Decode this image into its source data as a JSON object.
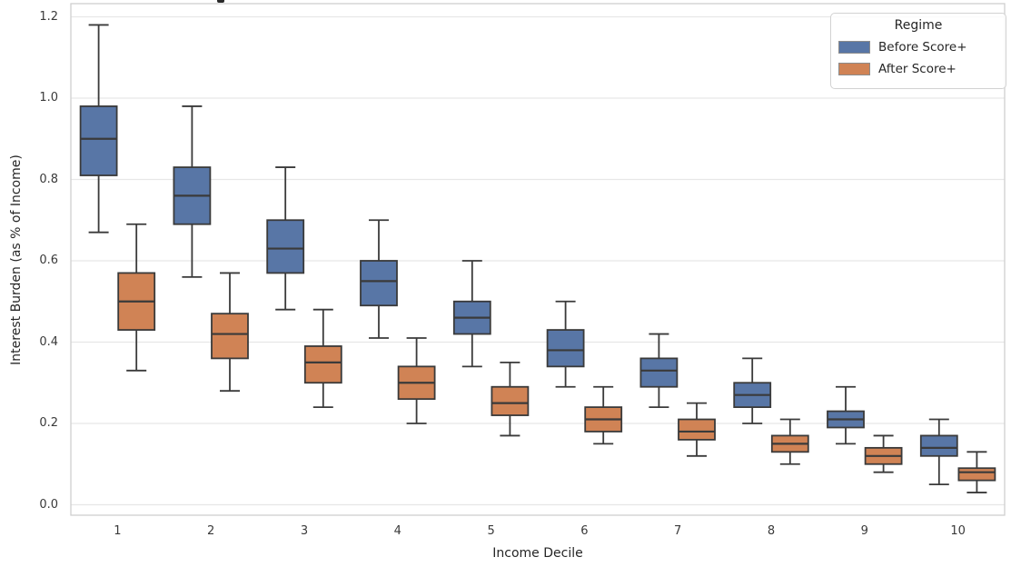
{
  "chart_data": {
    "type": "boxplot",
    "title": "",
    "xlabel": "Income Decile",
    "ylabel": "Interest Burden (as % of Income)",
    "categories": [
      "1",
      "2",
      "3",
      "4",
      "5",
      "6",
      "7",
      "8",
      "9",
      "10"
    ],
    "yticks": [
      "0.0",
      "0.2",
      "0.4",
      "0.6",
      "0.8",
      "1.0",
      "1.2"
    ],
    "ylim": [
      -0.026,
      1.233
    ],
    "grid": true,
    "legend": {
      "title": "Regime",
      "position": "upper-right"
    },
    "series": [
      {
        "name": "Before Score+",
        "color": "#5876a6",
        "boxes": [
          {
            "whisker_low": 0.67,
            "q1": 0.81,
            "median": 0.9,
            "q3": 0.98,
            "whisker_high": 1.18
          },
          {
            "whisker_low": 0.56,
            "q1": 0.69,
            "median": 0.76,
            "q3": 0.83,
            "whisker_high": 0.98
          },
          {
            "whisker_low": 0.48,
            "q1": 0.57,
            "median": 0.63,
            "q3": 0.7,
            "whisker_high": 0.83
          },
          {
            "whisker_low": 0.41,
            "q1": 0.49,
            "median": 0.55,
            "q3": 0.6,
            "whisker_high": 0.7
          },
          {
            "whisker_low": 0.34,
            "q1": 0.42,
            "median": 0.46,
            "q3": 0.5,
            "whisker_high": 0.6
          },
          {
            "whisker_low": 0.29,
            "q1": 0.34,
            "median": 0.38,
            "q3": 0.43,
            "whisker_high": 0.5
          },
          {
            "whisker_low": 0.24,
            "q1": 0.29,
            "median": 0.33,
            "q3": 0.36,
            "whisker_high": 0.42
          },
          {
            "whisker_low": 0.2,
            "q1": 0.24,
            "median": 0.27,
            "q3": 0.3,
            "whisker_high": 0.36
          },
          {
            "whisker_low": 0.15,
            "q1": 0.19,
            "median": 0.21,
            "q3": 0.23,
            "whisker_high": 0.29
          },
          {
            "whisker_low": 0.05,
            "q1": 0.12,
            "median": 0.14,
            "q3": 0.17,
            "whisker_high": 0.21
          }
        ]
      },
      {
        "name": "After Score+",
        "color": "#d08355",
        "boxes": [
          {
            "whisker_low": 0.33,
            "q1": 0.43,
            "median": 0.5,
            "q3": 0.57,
            "whisker_high": 0.69
          },
          {
            "whisker_low": 0.28,
            "q1": 0.36,
            "median": 0.42,
            "q3": 0.47,
            "whisker_high": 0.57
          },
          {
            "whisker_low": 0.24,
            "q1": 0.3,
            "median": 0.35,
            "q3": 0.39,
            "whisker_high": 0.48
          },
          {
            "whisker_low": 0.2,
            "q1": 0.26,
            "median": 0.3,
            "q3": 0.34,
            "whisker_high": 0.41
          },
          {
            "whisker_low": 0.17,
            "q1": 0.22,
            "median": 0.25,
            "q3": 0.29,
            "whisker_high": 0.35
          },
          {
            "whisker_low": 0.15,
            "q1": 0.18,
            "median": 0.21,
            "q3": 0.24,
            "whisker_high": 0.29
          },
          {
            "whisker_low": 0.12,
            "q1": 0.16,
            "median": 0.18,
            "q3": 0.21,
            "whisker_high": 0.25
          },
          {
            "whisker_low": 0.1,
            "q1": 0.13,
            "median": 0.15,
            "q3": 0.17,
            "whisker_high": 0.21
          },
          {
            "whisker_low": 0.08,
            "q1": 0.1,
            "median": 0.12,
            "q3": 0.14,
            "whisker_high": 0.17
          },
          {
            "whisker_low": 0.03,
            "q1": 0.06,
            "median": 0.08,
            "q3": 0.09,
            "whisker_high": 0.13
          }
        ]
      }
    ],
    "colors": {
      "box_edge": "#3a3a3a",
      "grid": "#e7e7e7",
      "spine": "#cfcfcf",
      "text": "#262626"
    }
  }
}
